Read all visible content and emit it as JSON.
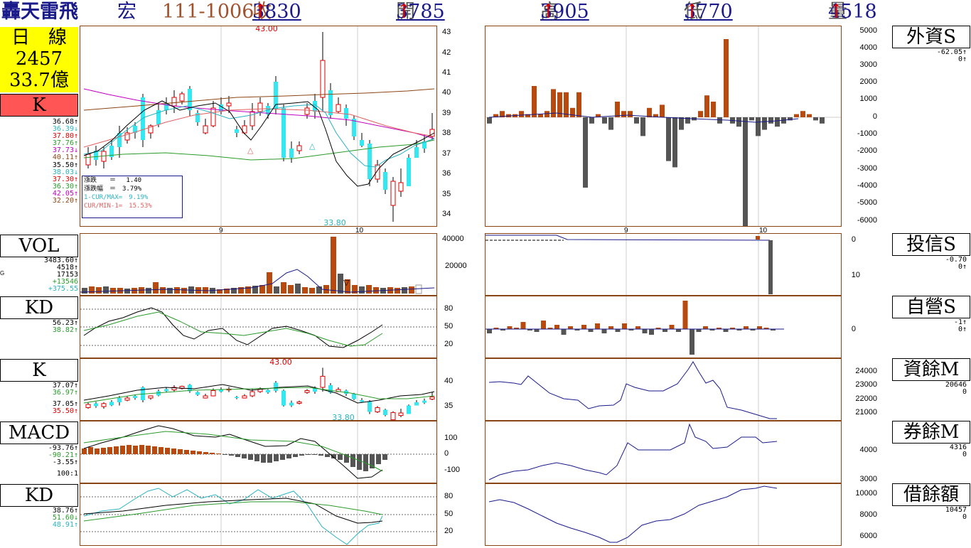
{
  "header": {
    "title": "轟天雷飛",
    "stock": "宏",
    "date": "111-1006",
    "close_label": "收",
    "close": "3830",
    "open_label": "開",
    "open": "3785",
    "high_label": "高",
    "high": "3905",
    "low_label": "低",
    "low": "3770",
    "vol_label": "量",
    "vol": "4518",
    "arrow": "↑"
  },
  "infobox": {
    "line1": "日　線",
    "line2": "2457",
    "line3": "33.7億"
  },
  "kbutton": "K",
  "price_side": {
    "vals": [
      "36.68↑",
      "36.39↓",
      "37.80↑",
      "37.76↑",
      "37.73↓",
      "40.11↑"
    ],
    "vals2": [
      "35.50↑",
      "38.03↓",
      "37.30↑",
      "36.30↑",
      "42.05↑",
      "32.20↑"
    ]
  },
  "stats": {
    "l1": "漲跌　　＝　 1.40",
    "l2": "漲跌幅　＝　3.79%",
    "l3": "1-CUR/MAX=　9.19%",
    "l4": "CUR/MIN-1=　15.53%"
  },
  "price_axis": [
    "43",
    "42",
    "41",
    "40",
    "39",
    "38",
    "37",
    "36",
    "35",
    "34"
  ],
  "price_hi": "43.00",
  "price_lo": "33.80",
  "month_labels": [
    "9",
    "10"
  ],
  "vol_panel": {
    "label": "VOL",
    "vals": [
      "3483.60↑",
      "4518↑",
      "17153",
      "+13546",
      "+375.55"
    ],
    "g": "G",
    "axis": [
      "40000",
      "20000"
    ]
  },
  "kd_panel": {
    "label": "KD",
    "vals": [
      "56.23↑",
      "38.82↑"
    ],
    "axis": [
      "80",
      "50",
      "20"
    ]
  },
  "k2_panel": {
    "label": "K",
    "vals": [
      "37.07↑",
      "36.97↑",
      "37.05↑",
      "35.50↑"
    ],
    "axis": [
      "40",
      "35"
    ],
    "hi": "43.00",
    "lo": "33.80"
  },
  "macd_panel": {
    "label": "MACD",
    "vals": [
      "-93.76↑",
      "-90.21↑",
      "-3.55↑",
      "100:1"
    ],
    "axis": [
      "100",
      "0",
      "-100"
    ]
  },
  "kd2_panel": {
    "label": "KD",
    "vals": [
      "38.76↑",
      "51.60↓",
      "48.91↑"
    ],
    "axis": [
      "80",
      "50",
      "20"
    ]
  },
  "right_panels": [
    {
      "label": "外資S",
      "v1": "-62.05↑",
      "v2": "0↑",
      "axis": [
        "5000",
        "4000",
        "3000",
        "2000",
        "1000",
        "0",
        "-1000",
        "-2000",
        "-3000",
        "-4000",
        "-5000",
        "-6000"
      ]
    },
    {
      "label": "投信S",
      "v1": "-0.70",
      "v2": "0↑",
      "axis": [
        "0",
        "10"
      ]
    },
    {
      "label": "自營S",
      "v1": "-1↑",
      "v2": "0↑",
      "axis": [
        "0"
      ]
    },
    {
      "label": "資餘M",
      "v1": "20646",
      "v2": "0",
      "axis": [
        "24000",
        "23000",
        "22000",
        "21000"
      ]
    },
    {
      "label": "券餘M",
      "v1": "4316",
      "v2": "0",
      "axis": [
        "4000",
        "3000"
      ]
    },
    {
      "label": "借餘額",
      "v1": "10457",
      "v2": "0",
      "axis": [
        "10000",
        "8000",
        "6000"
      ]
    }
  ],
  "colors": {
    "up": "#b84a10",
    "down": "#555555",
    "cyan": "#33e8f0",
    "red": "#e00000",
    "navy": "#1a1a8a"
  }
}
